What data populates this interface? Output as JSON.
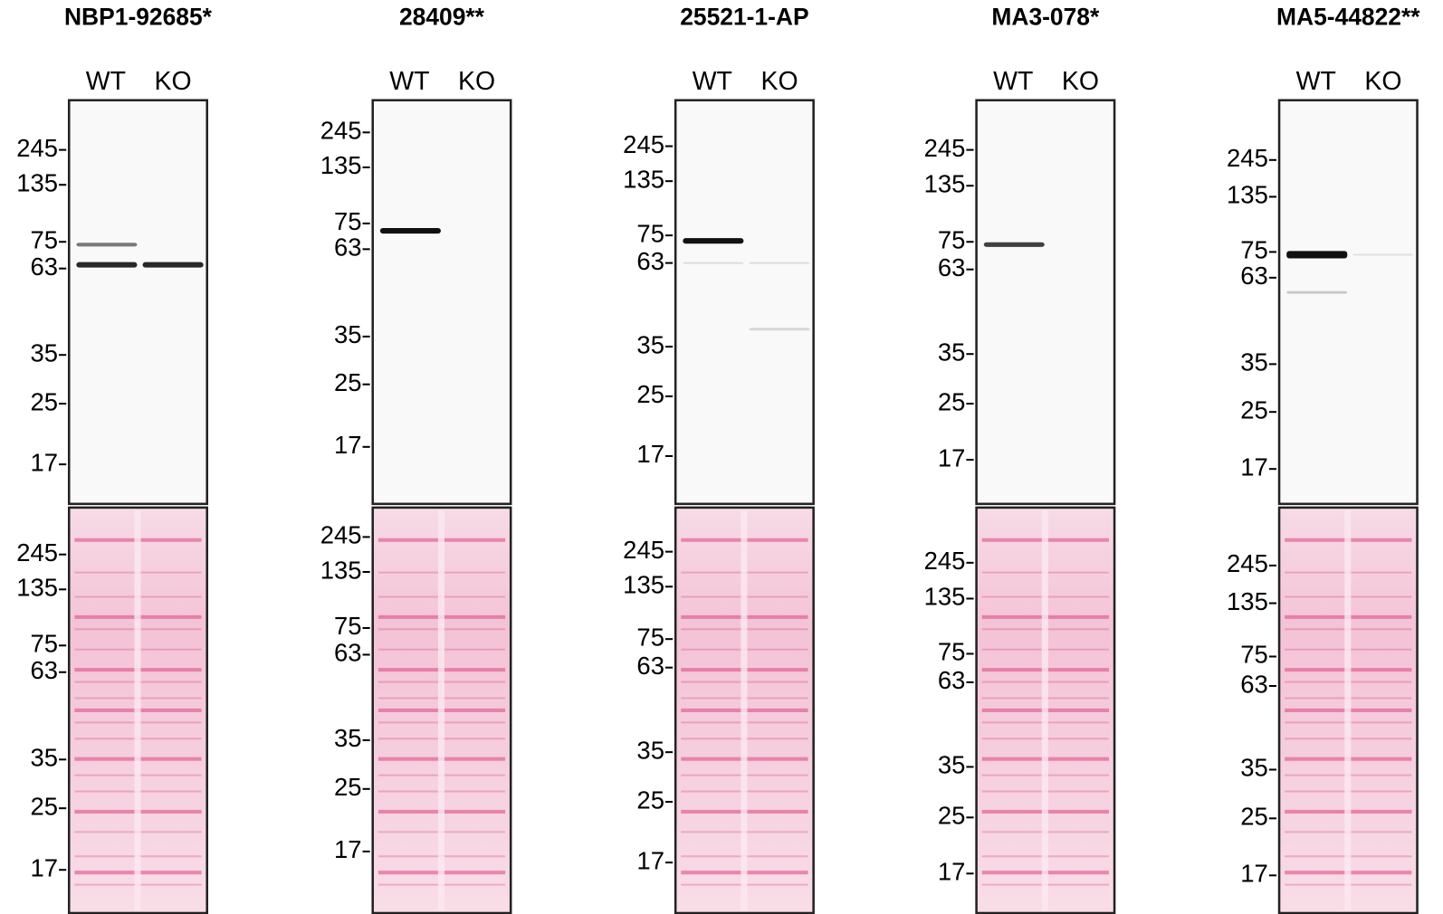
{
  "panels": [
    {
      "title": "NBP1-92685*",
      "lanes": [
        "WT",
        "KO"
      ],
      "blot_markers": [
        245,
        135,
        75,
        63,
        35,
        25,
        17
      ],
      "ponceau_markers": [
        245,
        135,
        75,
        63,
        35,
        25,
        17
      ]
    },
    {
      "title": "28409**",
      "lanes": [
        "WT",
        "KO"
      ],
      "blot_markers": [
        245,
        135,
        75,
        63,
        35,
        25,
        17
      ],
      "ponceau_markers": [
        245,
        135,
        75,
        63,
        35,
        25,
        17
      ]
    },
    {
      "title": "25521-1-AP",
      "lanes": [
        "WT",
        "KO"
      ],
      "blot_markers": [
        245,
        135,
        75,
        63,
        35,
        25,
        17
      ],
      "ponceau_markers": [
        245,
        135,
        75,
        63,
        35,
        25,
        17
      ]
    },
    {
      "title": "MA3-078*",
      "lanes": [
        "WT",
        "KO"
      ],
      "blot_markers": [
        245,
        135,
        75,
        63,
        35,
        25,
        17
      ],
      "ponceau_markers": [
        245,
        135,
        75,
        63,
        35,
        25,
        17
      ]
    },
    {
      "title": "MA5-44822**",
      "lanes": [
        "WT",
        "KO"
      ],
      "blot_markers": [
        245,
        135,
        75,
        63,
        35,
        25,
        17
      ],
      "ponceau_markers": [
        245,
        135,
        75,
        63,
        35,
        25,
        17
      ]
    }
  ]
}
